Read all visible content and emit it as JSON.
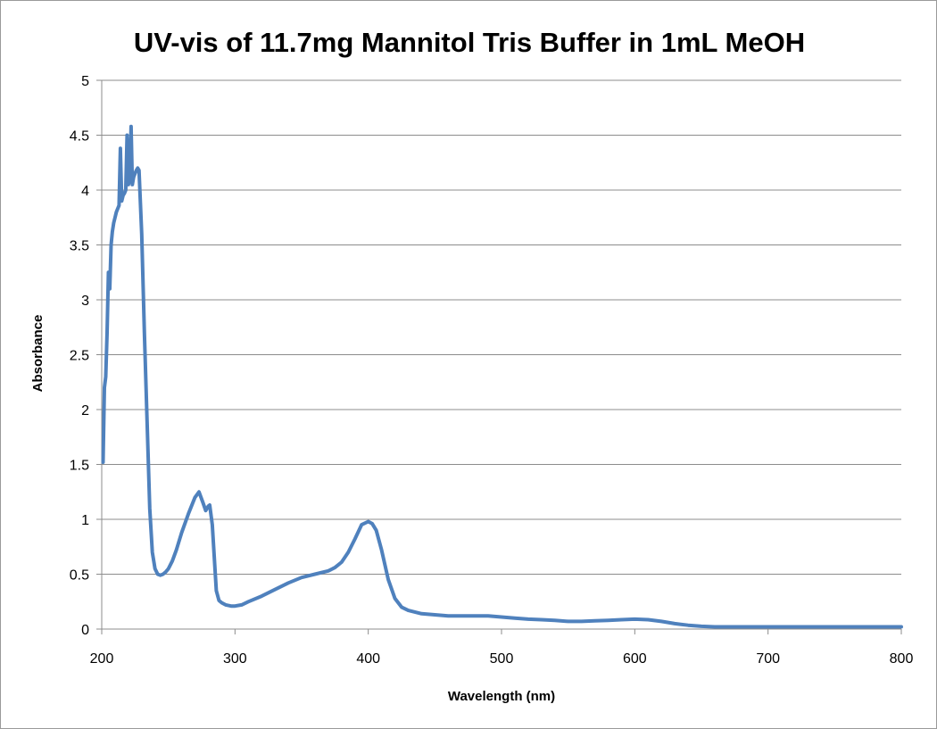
{
  "chart_data": {
    "type": "line",
    "title": "UV-vis of 11.7mg Mannitol Tris Buffer in 1mL MeOH",
    "xlabel": "Wavelength (nm)",
    "ylabel": "Absorbance",
    "xlim": [
      200,
      800
    ],
    "ylim": [
      0,
      5
    ],
    "x_ticks": [
      "200",
      "300",
      "400",
      "500",
      "600",
      "700",
      "800"
    ],
    "y_ticks": [
      "0",
      "0.5",
      "1",
      "1.5",
      "2",
      "2.5",
      "3",
      "3.5",
      "4",
      "4.5",
      "5"
    ],
    "grid": "horizontal",
    "legend": "none",
    "series": [
      {
        "color": "#4f81bd",
        "x": [
          201,
          202,
          203,
          204,
          205,
          206,
          207,
          208,
          209,
          210,
          211,
          212,
          213,
          214,
          215,
          216,
          217,
          218,
          219,
          220,
          221,
          222,
          223,
          224,
          225,
          226,
          227,
          228,
          230,
          232,
          234,
          235,
          236,
          238,
          240,
          242,
          244,
          246,
          248,
          250,
          253,
          256,
          260,
          265,
          270,
          273,
          276,
          278,
          280,
          281,
          283,
          285,
          286,
          288,
          290,
          293,
          297,
          300,
          305,
          310,
          320,
          330,
          340,
          350,
          360,
          370,
          375,
          380,
          385,
          390,
          395,
          400,
          403,
          406,
          410,
          415,
          420,
          425,
          430,
          440,
          450,
          460,
          470,
          480,
          490,
          500,
          510,
          520,
          530,
          540,
          550,
          560,
          570,
          580,
          590,
          600,
          610,
          620,
          630,
          640,
          650,
          660,
          680,
          700,
          720,
          740,
          760,
          780,
          800
        ],
        "values": [
          1.52,
          2.2,
          2.3,
          2.7,
          3.25,
          3.1,
          3.5,
          3.62,
          3.7,
          3.75,
          3.8,
          3.83,
          3.86,
          4.38,
          3.9,
          3.95,
          3.97,
          4.0,
          4.5,
          4.05,
          4.1,
          4.58,
          4.05,
          4.12,
          4.15,
          4.18,
          4.2,
          4.18,
          3.6,
          2.7,
          1.9,
          1.5,
          1.1,
          0.7,
          0.55,
          0.5,
          0.49,
          0.5,
          0.52,
          0.55,
          0.62,
          0.72,
          0.88,
          1.05,
          1.2,
          1.25,
          1.15,
          1.08,
          1.12,
          1.13,
          0.95,
          0.55,
          0.35,
          0.26,
          0.24,
          0.22,
          0.21,
          0.21,
          0.22,
          0.25,
          0.3,
          0.36,
          0.42,
          0.47,
          0.5,
          0.53,
          0.56,
          0.61,
          0.7,
          0.82,
          0.95,
          0.98,
          0.96,
          0.9,
          0.72,
          0.45,
          0.28,
          0.2,
          0.17,
          0.14,
          0.13,
          0.12,
          0.12,
          0.12,
          0.12,
          0.11,
          0.1,
          0.09,
          0.085,
          0.08,
          0.07,
          0.07,
          0.075,
          0.08,
          0.085,
          0.09,
          0.085,
          0.07,
          0.05,
          0.035,
          0.025,
          0.02,
          0.02,
          0.02,
          0.02,
          0.02,
          0.02,
          0.02,
          0.02
        ]
      }
    ]
  }
}
